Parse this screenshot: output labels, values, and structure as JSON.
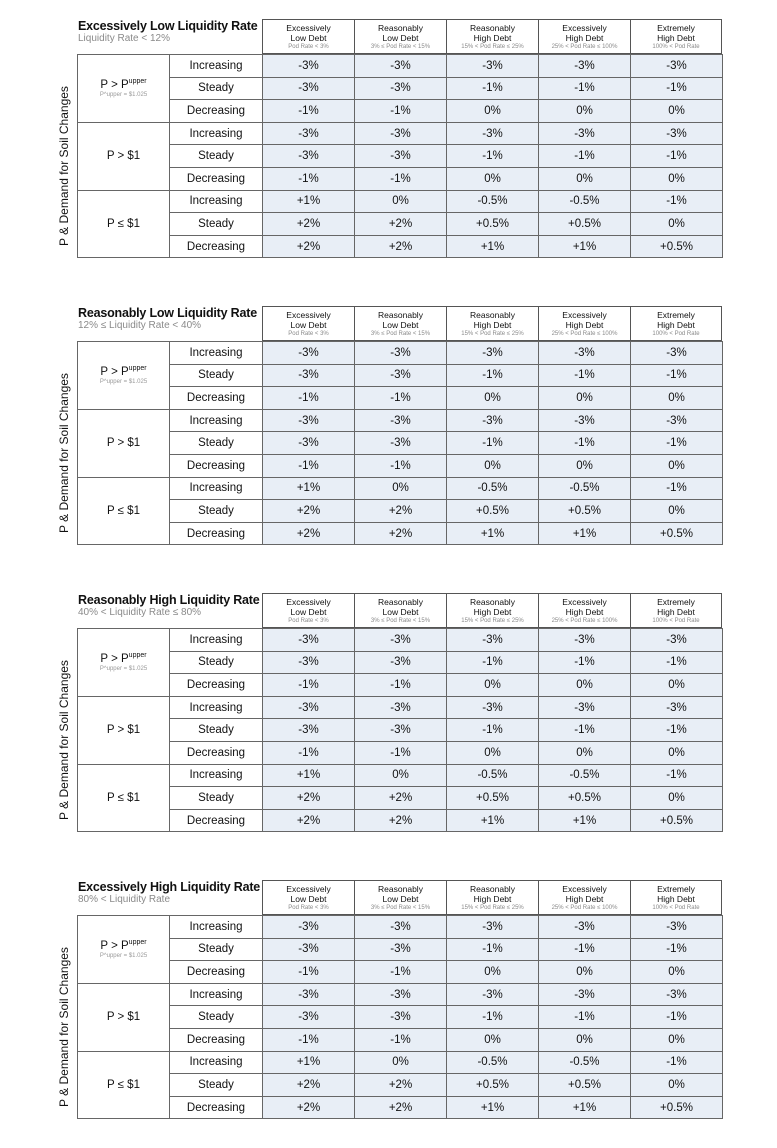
{
  "y_axis_label": "P & Demand for Soil Changes",
  "columns": [
    {
      "line1": "Excessively",
      "line2": "Low Debt",
      "range": "Pod Rate < 3%"
    },
    {
      "line1": "Reasonably",
      "line2": "Low Debt",
      "range": "3% ≤ Pod Rate < 15%"
    },
    {
      "line1": "Reasonably",
      "line2": "High Debt",
      "range": "15% < Pod Rate ≤ 25%"
    },
    {
      "line1": "Excessively",
      "line2": "High Debt",
      "range": "25% < Pod Rate ≤ 100%"
    },
    {
      "line1": "Extremely",
      "line2": "High Debt",
      "range": "100% < Pod Rate"
    }
  ],
  "price_groups": [
    {
      "label": "P > P",
      "sup": "upper",
      "sub": "P^upper = $1.025"
    },
    {
      "label": "P > $1",
      "sup": "",
      "sub": ""
    },
    {
      "label": "P ≤ $1",
      "sup": "",
      "sub": ""
    }
  ],
  "trends": [
    "Increasing",
    "Steady",
    "Decreasing"
  ],
  "values": [
    [
      "-3%",
      "-3%",
      "-3%",
      "-3%",
      "-3%"
    ],
    [
      "-3%",
      "-3%",
      "-1%",
      "-1%",
      "-1%"
    ],
    [
      "-1%",
      "-1%",
      "0%",
      "0%",
      "0%"
    ],
    [
      "-3%",
      "-3%",
      "-3%",
      "-3%",
      "-3%"
    ],
    [
      "-3%",
      "-3%",
      "-1%",
      "-1%",
      "-1%"
    ],
    [
      "-1%",
      "-1%",
      "0%",
      "0%",
      "0%"
    ],
    [
      "+1%",
      "0%",
      "-0.5%",
      "-0.5%",
      "-1%"
    ],
    [
      "+2%",
      "+2%",
      "+0.5%",
      "+0.5%",
      "0%"
    ],
    [
      "+2%",
      "+2%",
      "+1%",
      "+1%",
      "+0.5%"
    ]
  ],
  "blocks": [
    {
      "title": "Excessively Low Liquidity Rate",
      "subtitle": "Liquidity Rate < 12%"
    },
    {
      "title": "Reasonably Low Liquidity Rate",
      "subtitle": "12% ≤ Liquidity Rate < 40%"
    },
    {
      "title": "Reasonably High Liquidity Rate",
      "subtitle": "40% < Liquidity Rate ≤ 80%"
    },
    {
      "title": "Excessively High Liquidity Rate",
      "subtitle": "80% < Liquidity Rate"
    }
  ],
  "colors": {
    "value_cell_bg": "#e8eef6",
    "border": "#666666"
  }
}
